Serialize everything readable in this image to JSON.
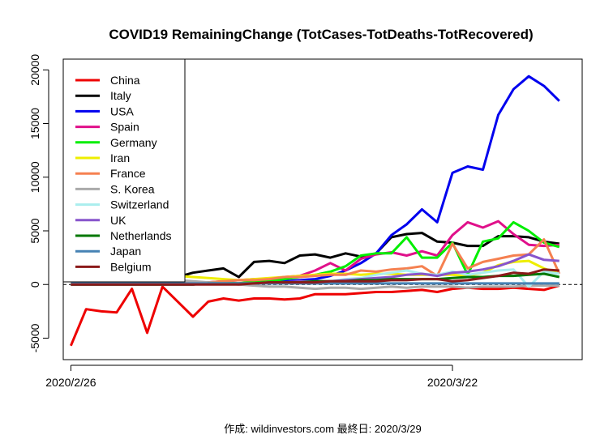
{
  "chart_data": {
    "type": "line",
    "title": "COVID19 RemainingChange (TotCases-TotDeaths-TotRecovered)",
    "caption": "作成: wildinvestors.com 最終日: 2020/3/29",
    "xlabel": "",
    "ylabel": "",
    "ylim": [
      -7000,
      21000
    ],
    "yticks": [
      -5000,
      0,
      5000,
      10000,
      15000,
      20000
    ],
    "ytick_labels": [
      "-5000",
      "0",
      "5000",
      "10000",
      "15000",
      "20000"
    ],
    "xlim": [
      -0.5,
      33.5
    ],
    "xticks": [
      {
        "index": 0,
        "label": "2020/2/26"
      },
      {
        "index": 25,
        "label": "2020/3/22"
      }
    ],
    "x_dates": [
      "2/26",
      "2/27",
      "2/28",
      "2/29",
      "3/1",
      "3/2",
      "3/3",
      "3/4",
      "3/5",
      "3/6",
      "3/7",
      "3/8",
      "3/9",
      "3/10",
      "3/11",
      "3/12",
      "3/13",
      "3/14",
      "3/15",
      "3/16",
      "3/17",
      "3/18",
      "3/19",
      "3/20",
      "3/21",
      "3/22",
      "3/23",
      "3/24",
      "3/25",
      "3/26",
      "3/27",
      "3/28",
      "3/29"
    ],
    "zero_line": "dashed",
    "legend_position": "top-left",
    "series": [
      {
        "name": "China",
        "color": "#ee0000",
        "values": [
          -5700,
          -2300,
          -2500,
          -2600,
          -400,
          -4500,
          -200,
          -1600,
          -3000,
          -1600,
          -1300,
          -1500,
          -1300,
          -1300,
          -1400,
          -1300,
          -900,
          -900,
          -900,
          -800,
          -700,
          -700,
          -600,
          -500,
          -700,
          -400,
          -300,
          -400,
          -400,
          -300,
          -400,
          -500,
          -100
        ]
      },
      {
        "name": "Italy",
        "color": "#000000",
        "values": [
          300,
          300,
          200,
          400,
          500,
          600,
          400,
          700,
          1100,
          1300,
          1500,
          700,
          2100,
          2200,
          2000,
          2700,
          2800,
          2500,
          2900,
          2600,
          2900,
          4400,
          4700,
          4800,
          4000,
          3900,
          3600,
          3600,
          4500,
          4500,
          4400,
          4000,
          3800
        ]
      },
      {
        "name": "USA",
        "color": "#0000ee",
        "values": [
          0,
          0,
          0,
          0,
          0,
          0,
          0,
          100,
          100,
          100,
          100,
          100,
          200,
          200,
          300,
          400,
          500,
          800,
          1300,
          2000,
          2900,
          4600,
          5600,
          7000,
          5800,
          10400,
          11000,
          10700,
          15800,
          18200,
          19400,
          18500,
          17100
        ]
      },
      {
        "name": "Spain",
        "color": "#e0108a",
        "values": [
          0,
          0,
          0,
          0,
          0,
          0,
          0,
          0,
          0,
          200,
          300,
          400,
          500,
          500,
          700,
          800,
          1300,
          2000,
          1300,
          2400,
          2800,
          3000,
          2700,
          3100,
          2700,
          4600,
          5800,
          5300,
          5900,
          4700,
          3700,
          3600,
          3700
        ]
      },
      {
        "name": "Germany",
        "color": "#00ee00",
        "values": [
          0,
          0,
          0,
          0,
          0,
          0,
          0,
          100,
          100,
          200,
          200,
          100,
          300,
          300,
          500,
          700,
          900,
          1200,
          1700,
          2700,
          2900,
          2900,
          4400,
          2500,
          2500,
          3900,
          900,
          4000,
          4300,
          5800,
          5000,
          3900,
          3500
        ]
      },
      {
        "name": "Iran",
        "color": "#eeee00",
        "values": [
          100,
          200,
          300,
          400,
          300,
          600,
          700,
          800,
          700,
          600,
          500,
          400,
          500,
          600,
          700,
          800,
          900,
          1000,
          1000,
          900,
          1000,
          1000,
          900,
          900,
          900,
          900,
          800,
          1100,
          1800,
          2100,
          2200,
          1500,
          1000
        ]
      },
      {
        "name": "France",
        "color": "#f58050",
        "values": [
          0,
          0,
          0,
          0,
          0,
          0,
          0,
          100,
          200,
          200,
          300,
          400,
          400,
          500,
          700,
          700,
          800,
          900,
          900,
          1300,
          1200,
          1400,
          1500,
          1700,
          800,
          3800,
          1500,
          2100,
          2400,
          2700,
          2800,
          4200,
          1000
        ]
      },
      {
        "name": "S. Korea",
        "color": "#aaaaaa",
        "values": [
          1300,
          500,
          200,
          400,
          1000,
          500,
          300,
          400,
          300,
          200,
          100,
          0,
          -100,
          -200,
          -200,
          -300,
          -400,
          -300,
          -300,
          -400,
          -300,
          -200,
          -300,
          -200,
          -200,
          -200,
          -300,
          -200,
          -200,
          -200,
          -100,
          -100,
          -100
        ]
      },
      {
        "name": "Switzerland",
        "color": "#aaeeee",
        "values": [
          0,
          0,
          0,
          0,
          0,
          0,
          0,
          0,
          0,
          100,
          100,
          100,
          100,
          200,
          200,
          200,
          300,
          300,
          500,
          600,
          900,
          1100,
          1300,
          1000,
          900,
          1200,
          900,
          1100,
          1300,
          1400,
          -200,
          1200,
          1000
        ]
      },
      {
        "name": "UK",
        "color": "#8855cc",
        "values": [
          0,
          0,
          0,
          0,
          0,
          0,
          0,
          0,
          0,
          100,
          100,
          100,
          100,
          200,
          200,
          300,
          300,
          300,
          400,
          500,
          600,
          700,
          900,
          1000,
          800,
          1100,
          1200,
          1400,
          1700,
          2200,
          2800,
          2300,
          2200
        ]
      },
      {
        "name": "Netherlands",
        "color": "#007700",
        "values": [
          0,
          0,
          0,
          0,
          0,
          0,
          0,
          0,
          0,
          100,
          100,
          100,
          100,
          200,
          200,
          200,
          300,
          300,
          300,
          400,
          400,
          500,
          500,
          500,
          500,
          600,
          700,
          700,
          800,
          800,
          900,
          1000,
          700
        ]
      },
      {
        "name": "Japan",
        "color": "#4682b4",
        "values": [
          100,
          100,
          100,
          100,
          100,
          100,
          100,
          100,
          100,
          100,
          100,
          100,
          100,
          100,
          100,
          100,
          100,
          100,
          100,
          100,
          100,
          100,
          100,
          100,
          100,
          100,
          100,
          100,
          100,
          100,
          100,
          100,
          100
        ]
      },
      {
        "name": "Belgium",
        "color": "#8b1a1a",
        "values": [
          0,
          0,
          0,
          0,
          0,
          0,
          0,
          0,
          0,
          0,
          0,
          0,
          100,
          200,
          200,
          200,
          200,
          300,
          300,
          300,
          300,
          400,
          400,
          500,
          500,
          300,
          400,
          600,
          800,
          1100,
          1000,
          1400,
          1300
        ]
      }
    ]
  }
}
